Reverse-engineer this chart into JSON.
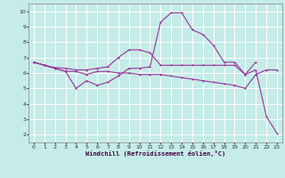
{
  "xlabel": "Windchill (Refroidissement éolien,°C)",
  "background_color": "#c5ece8",
  "grid_color": "#ffffff",
  "line_color": "#993399",
  "xlim": [
    -0.5,
    23.5
  ],
  "ylim": [
    1.5,
    10.5
  ],
  "xticks": [
    0,
    1,
    2,
    3,
    4,
    5,
    6,
    7,
    8,
    9,
    10,
    11,
    12,
    13,
    14,
    15,
    16,
    17,
    18,
    19,
    20,
    21,
    22,
    23
  ],
  "yticks": [
    2,
    3,
    4,
    5,
    6,
    7,
    8,
    9,
    10
  ],
  "line1_x": [
    0,
    1,
    2,
    3,
    4,
    5,
    6,
    7,
    8,
    9,
    10,
    11,
    12,
    13,
    14,
    15,
    16,
    17,
    18,
    19,
    20,
    21,
    22,
    23
  ],
  "line1_y": [
    6.7,
    6.5,
    6.3,
    6.1,
    5.0,
    5.5,
    5.2,
    5.4,
    5.8,
    6.3,
    6.3,
    6.4,
    9.3,
    9.9,
    9.9,
    8.8,
    8.5,
    7.8,
    6.7,
    6.7,
    5.9,
    6.2,
    3.2,
    2.1
  ],
  "line2_x": [
    0,
    1,
    2,
    3,
    4,
    5,
    6,
    7,
    8,
    9,
    10,
    11,
    12,
    13,
    14,
    15,
    16,
    17,
    18,
    19,
    20,
    21
  ],
  "line2_y": [
    6.7,
    6.5,
    6.35,
    6.3,
    6.2,
    6.2,
    6.3,
    6.4,
    7.0,
    7.5,
    7.5,
    7.3,
    6.5,
    6.5,
    6.5,
    6.5,
    6.5,
    6.5,
    6.5,
    6.5,
    5.9,
    6.7
  ],
  "line3_x": [
    0,
    1,
    2,
    3,
    4,
    5,
    6,
    7,
    8,
    9,
    10,
    11,
    12,
    13,
    14,
    15,
    16,
    17,
    18,
    19,
    20,
    21,
    22,
    23
  ],
  "line3_y": [
    6.7,
    6.5,
    6.3,
    6.1,
    6.1,
    5.9,
    6.1,
    6.1,
    6.0,
    6.0,
    5.9,
    5.9,
    5.9,
    5.8,
    5.7,
    5.6,
    5.5,
    5.4,
    5.3,
    5.2,
    5.0,
    5.9,
    6.2,
    6.2
  ]
}
